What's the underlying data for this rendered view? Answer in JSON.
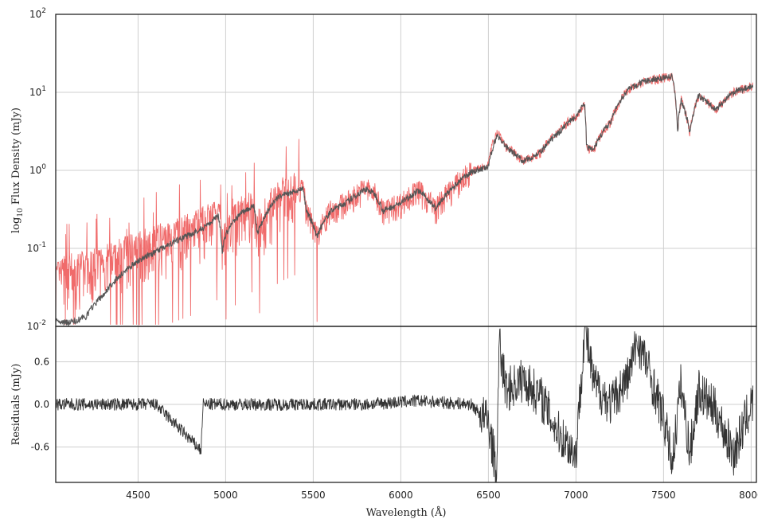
{
  "chart_data": [
    {
      "type": "line",
      "panel": "top",
      "xlabel": "Wavelength (Å)",
      "ylabel": "log10 Flux Density (mJy)",
      "ylabel_parts": {
        "pre": "log",
        "sub": "10",
        "post": " Flux Density (mJy)"
      },
      "xlim": [
        4030,
        8030
      ],
      "ylim": [
        0.01,
        100
      ],
      "yscale": "log",
      "grid": true,
      "y_ticks": [
        {
          "value": 0.01,
          "base": "10",
          "exp": "-2"
        },
        {
          "value": 0.1,
          "base": "10",
          "exp": "-1"
        },
        {
          "value": 1,
          "base": "10",
          "exp": "0"
        },
        {
          "value": 10,
          "base": "10",
          "exp": "1"
        },
        {
          "value": 100,
          "base": "10",
          "exp": "2"
        }
      ],
      "series": [
        {
          "color": "#f06b6b",
          "style": "noisy observed spectrum",
          "x": [
            4030,
            4100,
            4200,
            4300,
            4400,
            4500,
            4600,
            4700,
            4800,
            4900,
            4960,
            4980,
            5000,
            5100,
            5160,
            5180,
            5300,
            5440,
            5460,
            5500,
            5520,
            5600,
            5700,
            5800,
            5850,
            5900,
            6000,
            6100,
            6200,
            6300,
            6400,
            6500,
            6550,
            6600,
            6700,
            6800,
            6900,
            7000,
            7050,
            7060,
            7100,
            7200,
            7300,
            7400,
            7550,
            7580,
            7600,
            7650,
            7700,
            7800,
            7900,
            8000
          ],
          "y": [
            0.04,
            0.05,
            0.055,
            0.065,
            0.08,
            0.1,
            0.12,
            0.14,
            0.17,
            0.22,
            0.28,
            0.1,
            0.15,
            0.3,
            0.35,
            0.15,
            0.45,
            0.62,
            0.3,
            0.2,
            0.14,
            0.3,
            0.4,
            0.6,
            0.5,
            0.3,
            0.38,
            0.55,
            0.32,
            0.6,
            0.95,
            1.2,
            3.2,
            2.0,
            1.3,
            1.7,
            3.2,
            5.0,
            7.0,
            2.0,
            1.8,
            4.2,
            11,
            14,
            16,
            3.0,
            8.0,
            3.0,
            9.0,
            6.0,
            10,
            12
          ]
        },
        {
          "color": "#555555",
          "style": "model fit",
          "x": [
            4030,
            4100,
            4200,
            4300,
            4400,
            4500,
            4600,
            4700,
            4800,
            4900,
            4960,
            4980,
            5000,
            5100,
            5160,
            5180,
            5300,
            5440,
            5460,
            5500,
            5520,
            5600,
            5700,
            5800,
            5850,
            5900,
            6000,
            6100,
            6200,
            6300,
            6400,
            6500,
            6550,
            6600,
            6700,
            6800,
            6900,
            7000,
            7050,
            7060,
            7100,
            7200,
            7300,
            7400,
            7550,
            7580,
            7600,
            7650,
            7700,
            7800,
            7900,
            8000
          ],
          "y": [
            0.012,
            0.011,
            0.013,
            0.025,
            0.045,
            0.07,
            0.09,
            0.12,
            0.15,
            0.2,
            0.26,
            0.09,
            0.15,
            0.3,
            0.35,
            0.15,
            0.45,
            0.6,
            0.3,
            0.2,
            0.14,
            0.3,
            0.4,
            0.58,
            0.5,
            0.3,
            0.38,
            0.55,
            0.32,
            0.6,
            0.95,
            1.1,
            2.8,
            2.0,
            1.3,
            1.7,
            3.0,
            5.0,
            7.0,
            2.0,
            1.8,
            4.2,
            11,
            14,
            16,
            3.0,
            8.0,
            3.0,
            9.0,
            6.0,
            10,
            12
          ]
        }
      ]
    },
    {
      "type": "line",
      "panel": "bottom",
      "xlabel": "Wavelength (Å)",
      "ylabel": "Residuals (mJy)",
      "xlim": [
        4030,
        8030
      ],
      "ylim": [
        -1.1,
        1.1
      ],
      "grid": true,
      "x_ticks": [
        "4500",
        "5000",
        "5500",
        "6000",
        "6500",
        "7000",
        "7500",
        "8000"
      ],
      "y_ticks": [
        "0.6",
        "0.0",
        "-0.6"
      ],
      "series": [
        {
          "color": "#333333",
          "x": [
            4030,
            4300,
            4600,
            4860,
            4870,
            5200,
            5500,
            5800,
            6100,
            6400,
            6500,
            6550,
            6560,
            6600,
            6700,
            6800,
            6900,
            7000,
            7050,
            7100,
            7200,
            7300,
            7350,
            7400,
            7500,
            7550,
            7600,
            7650,
            7700,
            7800,
            7900,
            8000
          ],
          "y": [
            0.0,
            0.0,
            0.0,
            -0.65,
            0.0,
            0.0,
            0.0,
            0.0,
            0.05,
            0.0,
            -0.25,
            -1.0,
            0.9,
            0.2,
            0.35,
            0.1,
            -0.4,
            -0.7,
            1.1,
            0.3,
            0.0,
            0.4,
            0.9,
            0.6,
            -0.2,
            -0.8,
            0.3,
            -0.7,
            0.2,
            -0.1,
            -0.7,
            0.0
          ]
        }
      ]
    }
  ]
}
